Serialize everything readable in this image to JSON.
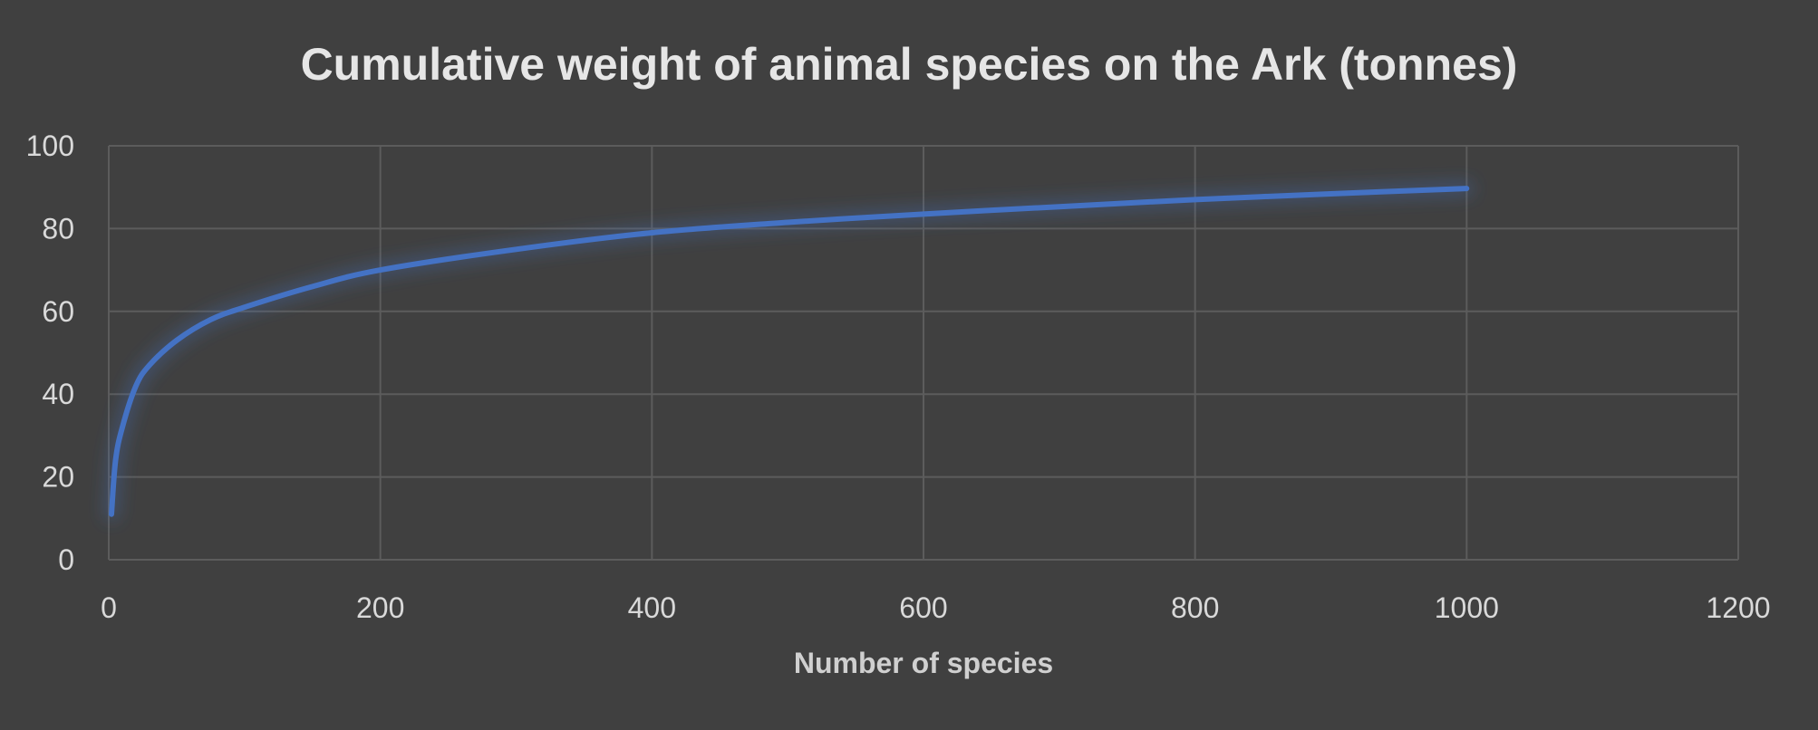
{
  "chart_data": {
    "type": "line",
    "title": "Cumulative weight of animal species on the Ark (tonnes)",
    "xlabel": "Number of species",
    "ylabel": "",
    "xlim": [
      0,
      1200
    ],
    "ylim": [
      0,
      100
    ],
    "xticks": [
      0,
      200,
      400,
      600,
      800,
      1000,
      1200
    ],
    "yticks": [
      0,
      20,
      40,
      60,
      80,
      100
    ],
    "grid": true,
    "legend": "none",
    "series": [
      {
        "color": "#4472c4",
        "x": [
          2,
          5,
          10,
          20,
          30,
          50,
          75,
          100,
          150,
          200,
          300,
          400,
          500,
          600,
          700,
          800,
          900,
          1000
        ],
        "y": [
          11,
          24,
          32,
          42,
          47,
          53,
          58,
          61,
          66,
          70,
          75,
          79,
          81.5,
          83.5,
          85.3,
          87,
          88.4,
          89.7
        ]
      }
    ]
  }
}
